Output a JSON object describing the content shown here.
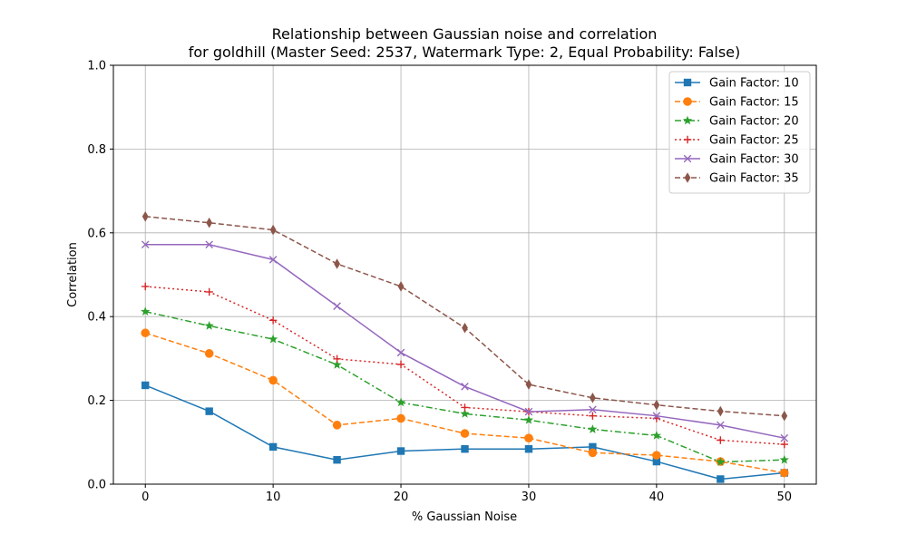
{
  "chart_data": {
    "type": "line",
    "title": [
      "Relationship between Gaussian noise and correlation",
      "for goldhill (Master Seed: 2537, Watermark Type: 2, Equal Probability: False)"
    ],
    "xlabel": "% Gaussian Noise",
    "ylabel": "Correlation",
    "x": [
      0,
      5,
      10,
      15,
      20,
      25,
      30,
      35,
      40,
      45,
      50
    ],
    "xlim": [
      -2.5,
      52.5
    ],
    "ylim": [
      0,
      1
    ],
    "xticks": [
      0,
      10,
      20,
      30,
      40,
      50
    ],
    "yticks": [
      0.0,
      0.2,
      0.4,
      0.6,
      0.8,
      1.0
    ],
    "xtick_labels": [
      "0",
      "10",
      "20",
      "30",
      "40",
      "50"
    ],
    "ytick_labels": [
      "0.0",
      "0.2",
      "0.4",
      "0.6",
      "0.8",
      "1.0"
    ],
    "grid": true,
    "legend_position": "top-right",
    "series": [
      {
        "name": "Gain Factor: 10",
        "color": "#1f77b4",
        "dash": "solid",
        "marker": "square",
        "values": [
          0.236,
          0.174,
          0.089,
          0.058,
          0.079,
          0.084,
          0.084,
          0.089,
          0.054,
          0.012,
          0.027
        ]
      },
      {
        "name": "Gain Factor: 15",
        "color": "#ff7f0e",
        "dash": "dashed",
        "marker": "circle",
        "values": [
          0.361,
          0.312,
          0.248,
          0.141,
          0.157,
          0.121,
          0.11,
          0.075,
          0.069,
          0.054,
          0.027
        ]
      },
      {
        "name": "Gain Factor: 20",
        "color": "#2ca02c",
        "dash": "dashdot",
        "marker": "star",
        "values": [
          0.412,
          0.378,
          0.346,
          0.285,
          0.195,
          0.168,
          0.153,
          0.131,
          0.116,
          0.053,
          0.058
        ]
      },
      {
        "name": "Gain Factor: 25",
        "color": "#d62728",
        "dash": "dotted",
        "marker": "plus",
        "values": [
          0.472,
          0.459,
          0.391,
          0.299,
          0.286,
          0.183,
          0.173,
          0.163,
          0.157,
          0.105,
          0.095
        ]
      },
      {
        "name": "Gain Factor: 30",
        "color": "#9467bd",
        "dash": "solid",
        "marker": "x",
        "values": [
          0.572,
          0.572,
          0.536,
          0.425,
          0.314,
          0.233,
          0.173,
          0.178,
          0.163,
          0.141,
          0.11
        ]
      },
      {
        "name": "Gain Factor: 35",
        "color": "#8c564b",
        "dash": "dashed",
        "marker": "diamond",
        "values": [
          0.639,
          0.624,
          0.607,
          0.526,
          0.472,
          0.373,
          0.238,
          0.206,
          0.189,
          0.174,
          0.163
        ]
      }
    ]
  }
}
